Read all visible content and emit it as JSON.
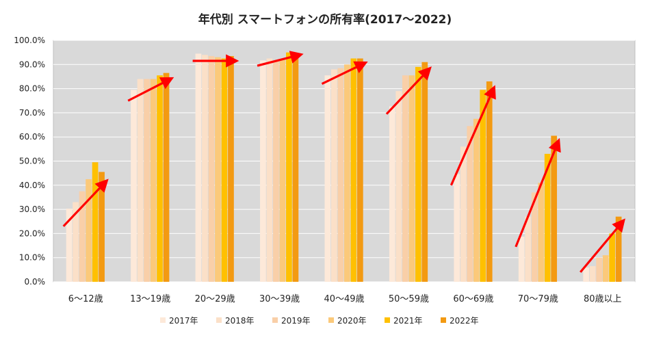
{
  "chart_data": {
    "type": "bar",
    "title": "年代別 スマートフォンの所有率(2017〜2022)",
    "xlabel": "",
    "ylabel": "",
    "categories": [
      "6〜12歳",
      "13〜19歳",
      "20〜29歳",
      "30〜39歳",
      "40〜49歳",
      "50〜59歳",
      "60〜69歳",
      "70〜79歳",
      "80歳以上"
    ],
    "series": [
      {
        "name": "2017年",
        "color": "#fde9d9",
        "values": [
          30.3,
          79.5,
          94.5,
          91.7,
          85.5,
          72.7,
          44.6,
          18.7,
          5.9
        ]
      },
      {
        "name": "2018年",
        "color": "#fbe0c8",
        "values": [
          33.0,
          84.0,
          94.0,
          92.5,
          88.0,
          79.0,
          56.0,
          27.0,
          6.5
        ]
      },
      {
        "name": "2019年",
        "color": "#f9cfa8",
        "values": [
          37.5,
          84.0,
          93.5,
          91.5,
          88.5,
          85.5,
          64.5,
          37.0,
          10.0
        ]
      },
      {
        "name": "2020年",
        "color": "#fbc97a",
        "values": [
          42.5,
          84.0,
          93.0,
          92.0,
          90.0,
          85.5,
          67.5,
          41.0,
          11.0
        ]
      },
      {
        "name": "2021年",
        "color": "#ffc000",
        "values": [
          49.5,
          85.5,
          92.5,
          95.0,
          92.5,
          89.0,
          79.5,
          53.0,
          20.0
        ]
      },
      {
        "name": "2022年",
        "color": "#f39a12",
        "values": [
          45.5,
          86.5,
          93.5,
          94.5,
          92.5,
          91.0,
          83.0,
          60.5,
          27.0
        ]
      }
    ],
    "ylim": [
      0,
      100
    ],
    "yticks": [
      "0.0%",
      "10.0%",
      "20.0%",
      "30.0%",
      "40.0%",
      "50.0%",
      "60.0%",
      "70.0%",
      "80.0%",
      "90.0%",
      "100.0%"
    ],
    "grid": true,
    "legend": "bottom",
    "plot_background": "#d9d9d9",
    "trend_arrows": {
      "color": "#ff0000",
      "segments": [
        [
          23,
          41.5
        ],
        [
          75,
          84
        ],
        [
          91.5,
          91.5
        ],
        [
          89.5,
          94
        ],
        [
          82,
          90.5
        ],
        [
          69.5,
          88
        ],
        [
          40,
          80
        ],
        [
          14.5,
          58
        ],
        [
          4,
          25
        ]
      ]
    }
  }
}
